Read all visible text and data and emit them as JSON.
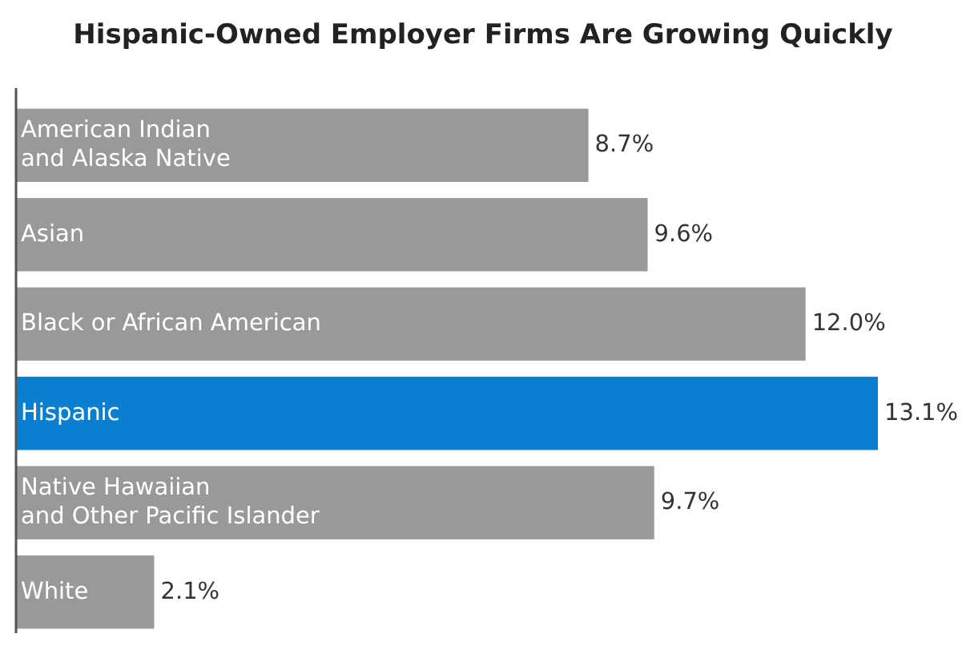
{
  "chart_data": {
    "type": "bar",
    "orientation": "horizontal",
    "title": "Hispanic-Owned Employer Firms Are Growing Quickly",
    "categories": [
      "American Indian\nand Alaska Native",
      "Asian",
      "Black or African American",
      "Hispanic",
      "Native Hawaiian\nand Other Pacific Islander",
      "White"
    ],
    "values": [
      8.7,
      9.6,
      12.0,
      13.1,
      9.7,
      2.1
    ],
    "value_labels": [
      "8.7%",
      "9.6%",
      "12.0%",
      "13.1%",
      "9.7%",
      "2.1%"
    ],
    "colors": [
      "#999999",
      "#999999",
      "#999999",
      "#0a7fcf",
      "#999999",
      "#999999"
    ]
  }
}
